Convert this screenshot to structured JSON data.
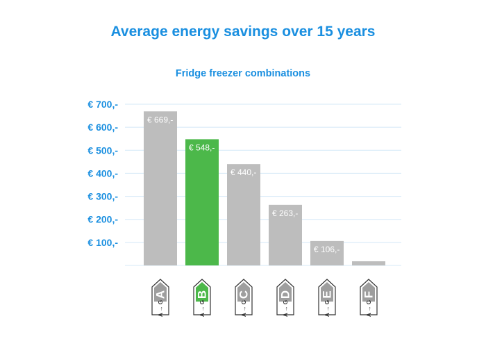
{
  "chart_data": {
    "type": "bar",
    "title": "Average energy savings over 15 years",
    "subtitle": "Fridge freezer combinations",
    "xlabel": "",
    "ylabel": "",
    "ylim": [
      0,
      700
    ],
    "yticks": [
      100,
      200,
      300,
      400,
      500,
      600,
      700
    ],
    "ytick_labels": [
      "€ 100,-",
      "€ 200,-",
      "€ 300,-",
      "€ 400,-",
      "€ 500,-",
      "€ 600,-",
      "€ 700,-"
    ],
    "grid": true,
    "categories": [
      "A",
      "B",
      "C",
      "D",
      "E",
      "F"
    ],
    "values": [
      669,
      548,
      440,
      263,
      106,
      18
    ],
    "data_labels": [
      "€ 669,-",
      "€ 548,-",
      "€ 440,-",
      "€ 263,-",
      "€ 106,-",
      ""
    ],
    "label_scale": [
      "A",
      "G"
    ],
    "colors": {
      "default": "#bdbdbd",
      "highlight": "#4cb84a",
      "highlight_category": "B",
      "accent": "#1a8fe0"
    }
  }
}
